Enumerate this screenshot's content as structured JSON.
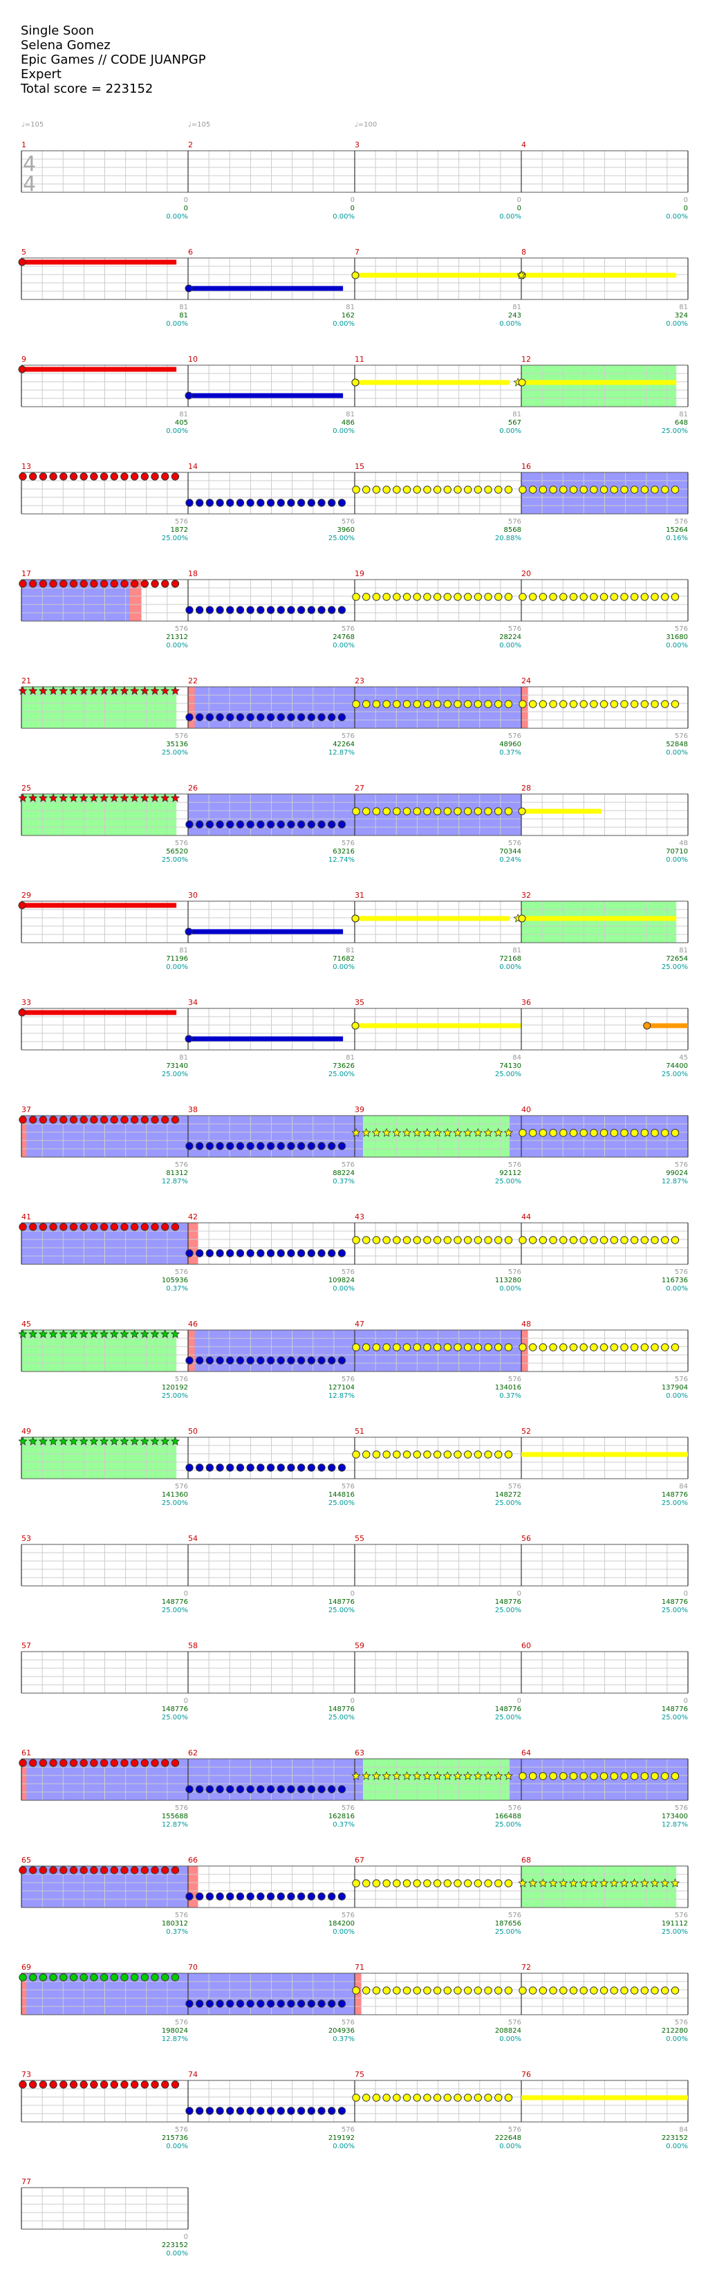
{
  "header": {
    "song": "Single Soon",
    "artist": "Selena Gomez",
    "charter": "Epic Games // CODE JUANPGP",
    "difficulty": "Expert",
    "total_score": "Total score = 223152"
  },
  "time_signature": {
    "top": "4",
    "bottom": "4"
  },
  "colors": {
    "red": "#ee0000",
    "blue": "#0000cc",
    "yellow": "#ffff00",
    "orange": "#ff9900",
    "green": "#00cc00",
    "overdrive": "#99ff99",
    "solo": "#9999ff",
    "grid": "#cccccc",
    "measure_line": "#333333",
    "measure_number": "#cc0000",
    "score": "#006600",
    "percent": "#009999"
  },
  "tempo_markers": [
    "♩=105",
    "♩=105",
    "♩=100"
  ],
  "measures": [
    {
      "n": "1",
      "count": "0",
      "score": "0",
      "pct": "0.00%"
    },
    {
      "n": "2",
      "count": "0",
      "score": "0",
      "pct": "0.00%"
    },
    {
      "n": "3",
      "count": "0",
      "score": "0",
      "pct": "0.00%"
    },
    {
      "n": "4",
      "count": "0",
      "score": "0",
      "pct": "0.00%"
    },
    {
      "n": "5",
      "count": "81",
      "score": "81",
      "pct": "0.00%"
    },
    {
      "n": "6",
      "count": "81",
      "score": "162",
      "pct": "0.00%"
    },
    {
      "n": "7",
      "count": "81",
      "score": "243",
      "pct": "0.00%"
    },
    {
      "n": "8",
      "count": "81",
      "score": "324",
      "pct": "0.00%"
    },
    {
      "n": "9",
      "count": "81",
      "score": "405",
      "pct": "0.00%"
    },
    {
      "n": "10",
      "count": "81",
      "score": "486",
      "pct": "0.00%"
    },
    {
      "n": "11",
      "count": "81",
      "score": "567",
      "pct": "0.00%"
    },
    {
      "n": "12",
      "count": "81",
      "score": "648",
      "pct": "25.00%"
    },
    {
      "n": "13",
      "count": "576",
      "score": "1872",
      "pct": "25.00%"
    },
    {
      "n": "14",
      "count": "576",
      "score": "3960",
      "pct": "25.00%"
    },
    {
      "n": "15",
      "count": "576",
      "score": "8568",
      "pct": "20.88%"
    },
    {
      "n": "16",
      "count": "576",
      "score": "15264",
      "pct": "0.16%"
    },
    {
      "n": "17",
      "count": "576",
      "score": "21312",
      "pct": "0.00%"
    },
    {
      "n": "18",
      "count": "576",
      "score": "24768",
      "pct": "0.00%"
    },
    {
      "n": "19",
      "count": "576",
      "score": "28224",
      "pct": "0.00%"
    },
    {
      "n": "20",
      "count": "576",
      "score": "31680",
      "pct": "0.00%"
    },
    {
      "n": "21",
      "count": "576",
      "score": "35136",
      "pct": "25.00%"
    },
    {
      "n": "22",
      "count": "576",
      "score": "42264",
      "pct": "12.87%"
    },
    {
      "n": "23",
      "count": "576",
      "score": "48960",
      "pct": "0.37%"
    },
    {
      "n": "24",
      "count": "576",
      "score": "52848",
      "pct": "0.00%"
    },
    {
      "n": "25",
      "count": "576",
      "score": "56520",
      "pct": "25.00%"
    },
    {
      "n": "26",
      "count": "576",
      "score": "63216",
      "pct": "12.74%"
    },
    {
      "n": "27",
      "count": "576",
      "score": "70344",
      "pct": "0.24%"
    },
    {
      "n": "28",
      "count": "48",
      "score": "70710",
      "pct": "0.00%"
    },
    {
      "n": "29",
      "count": "81",
      "score": "71196",
      "pct": "0.00%"
    },
    {
      "n": "30",
      "count": "81",
      "score": "71682",
      "pct": "0.00%"
    },
    {
      "n": "31",
      "count": "81",
      "score": "72168",
      "pct": "0.00%"
    },
    {
      "n": "32",
      "count": "81",
      "score": "72654",
      "pct": "25.00%"
    },
    {
      "n": "33",
      "count": "81",
      "score": "73140",
      "pct": "25.00%"
    },
    {
      "n": "34",
      "count": "81",
      "score": "73626",
      "pct": "25.00%"
    },
    {
      "n": "35",
      "count": "84",
      "score": "74130",
      "pct": "25.00%"
    },
    {
      "n": "36",
      "count": "45",
      "score": "74400",
      "pct": "25.00%"
    },
    {
      "n": "37",
      "count": "576",
      "score": "81312",
      "pct": "12.87%"
    },
    {
      "n": "38",
      "count": "576",
      "score": "88224",
      "pct": "0.37%"
    },
    {
      "n": "39",
      "count": "576",
      "score": "92112",
      "pct": "25.00%"
    },
    {
      "n": "40",
      "count": "576",
      "score": "99024",
      "pct": "12.87%"
    },
    {
      "n": "41",
      "count": "576",
      "score": "105936",
      "pct": "0.37%"
    },
    {
      "n": "42",
      "count": "576",
      "score": "109824",
      "pct": "0.00%"
    },
    {
      "n": "43",
      "count": "576",
      "score": "113280",
      "pct": "0.00%"
    },
    {
      "n": "44",
      "count": "576",
      "score": "116736",
      "pct": "0.00%"
    },
    {
      "n": "45",
      "count": "576",
      "score": "120192",
      "pct": "25.00%"
    },
    {
      "n": "46",
      "count": "576",
      "score": "127104",
      "pct": "12.87%"
    },
    {
      "n": "47",
      "count": "576",
      "score": "134016",
      "pct": "0.37%"
    },
    {
      "n": "48",
      "count": "576",
      "score": "137904",
      "pct": "0.00%"
    },
    {
      "n": "49",
      "count": "576",
      "score": "141360",
      "pct": "25.00%"
    },
    {
      "n": "50",
      "count": "576",
      "score": "144816",
      "pct": "25.00%"
    },
    {
      "n": "51",
      "count": "576",
      "score": "148272",
      "pct": "25.00%"
    },
    {
      "n": "52",
      "count": "84",
      "score": "148776",
      "pct": "25.00%"
    },
    {
      "n": "53",
      "count": "0",
      "score": "148776",
      "pct": "25.00%"
    },
    {
      "n": "54",
      "count": "0",
      "score": "148776",
      "pct": "25.00%"
    },
    {
      "n": "55",
      "count": "0",
      "score": "148776",
      "pct": "25.00%"
    },
    {
      "n": "56",
      "count": "0",
      "score": "148776",
      "pct": "25.00%"
    },
    {
      "n": "57",
      "count": "0",
      "score": "148776",
      "pct": "25.00%"
    },
    {
      "n": "58",
      "count": "0",
      "score": "148776",
      "pct": "25.00%"
    },
    {
      "n": "59",
      "count": "0",
      "score": "148776",
      "pct": "25.00%"
    },
    {
      "n": "60",
      "count": "0",
      "score": "148776",
      "pct": "25.00%"
    },
    {
      "n": "61",
      "count": "576",
      "score": "155688",
      "pct": "12.87%"
    },
    {
      "n": "62",
      "count": "576",
      "score": "162816",
      "pct": "0.37%"
    },
    {
      "n": "63",
      "count": "576",
      "score": "166488",
      "pct": "25.00%"
    },
    {
      "n": "64",
      "count": "576",
      "score": "173400",
      "pct": "12.87%"
    },
    {
      "n": "65",
      "count": "576",
      "score": "180312",
      "pct": "0.37%"
    },
    {
      "n": "66",
      "count": "576",
      "score": "184200",
      "pct": "0.00%"
    },
    {
      "n": "67",
      "count": "576",
      "score": "187656",
      "pct": "25.00%"
    },
    {
      "n": "68",
      "count": "576",
      "score": "191112",
      "pct": "25.00%"
    },
    {
      "n": "69",
      "count": "576",
      "score": "198024",
      "pct": "12.87%"
    },
    {
      "n": "70",
      "count": "576",
      "score": "204936",
      "pct": "0.37%"
    },
    {
      "n": "71",
      "count": "576",
      "score": "208824",
      "pct": "0.00%"
    },
    {
      "n": "72",
      "count": "576",
      "score": "212280",
      "pct": "0.00%"
    },
    {
      "n": "73",
      "count": "576",
      "score": "215736",
      "pct": "0.00%"
    },
    {
      "n": "74",
      "count": "576",
      "score": "219192",
      "pct": "0.00%"
    },
    {
      "n": "75",
      "count": "576",
      "score": "222648",
      "pct": "0.00%"
    },
    {
      "n": "76",
      "count": "84",
      "score": "223152",
      "pct": "0.00%"
    },
    {
      "n": "77",
      "count": "0",
      "score": "223152",
      "pct": "0.00%"
    }
  ]
}
